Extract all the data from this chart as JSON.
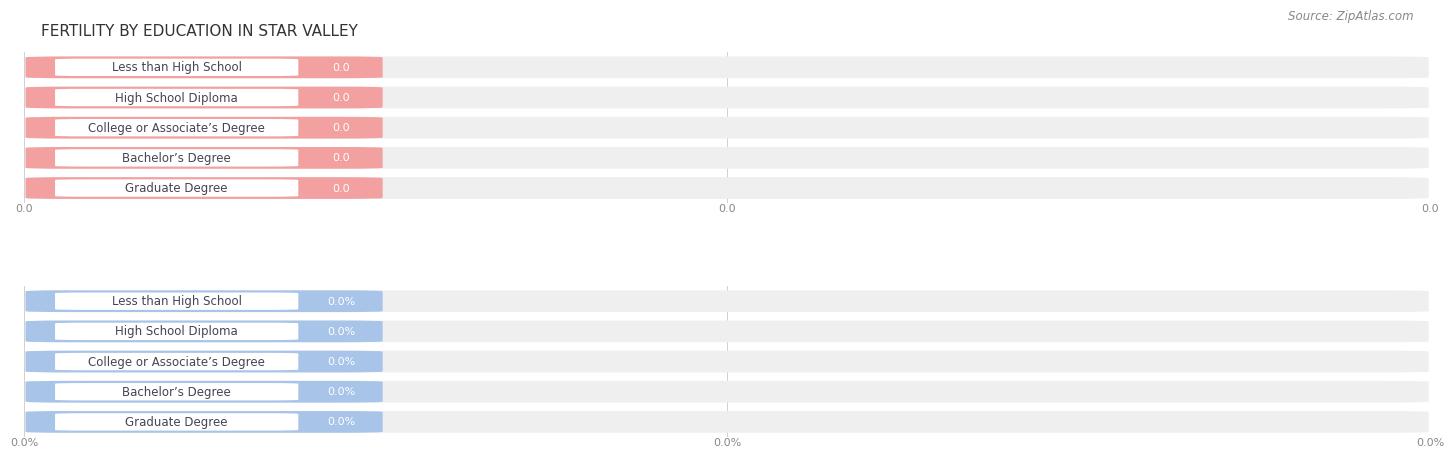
{
  "title": "FERTILITY BY EDUCATION IN STAR VALLEY",
  "source": "Source: ZipAtlas.com",
  "categories": [
    "Less than High School",
    "High School Diploma",
    "College or Associate’s Degree",
    "Bachelor’s Degree",
    "Graduate Degree"
  ],
  "values_top": [
    0.0,
    0.0,
    0.0,
    0.0,
    0.0
  ],
  "values_bottom": [
    0.0,
    0.0,
    0.0,
    0.0,
    0.0
  ],
  "bar_color_top": "#f2a0a0",
  "bar_color_bottom": "#a8c4e8",
  "bar_bg_color": "#efefef",
  "background_color": "#ffffff",
  "title_fontsize": 11,
  "label_fontsize": 8.5,
  "value_fontsize": 8,
  "tick_fontsize": 8,
  "source_fontsize": 8.5,
  "tick_labels_top": [
    "0.0",
    "0.0",
    "0.0"
  ],
  "tick_labels_bottom": [
    "0.0%",
    "0.0%",
    "0.0%"
  ],
  "grid_color": "#d0d0d0",
  "tick_color": "#888888",
  "label_text_color": "#444455",
  "title_color": "#333333"
}
